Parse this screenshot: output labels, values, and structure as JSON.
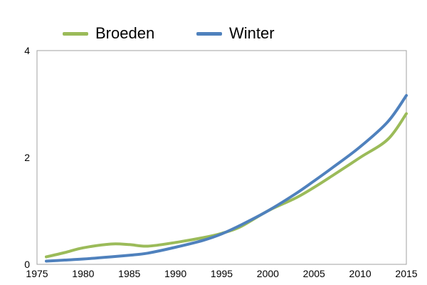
{
  "chart_data": {
    "type": "line",
    "title": "",
    "xlabel": "",
    "ylabel": "",
    "xlim": [
      1975,
      2015
    ],
    "ylim": [
      0,
      4
    ],
    "x_ticks": [
      1975,
      1980,
      1985,
      1990,
      1995,
      2000,
      2005,
      2010,
      2015
    ],
    "y_ticks": [
      0,
      2,
      4
    ],
    "grid": false,
    "legend_position": "top",
    "x": [
      1976,
      1978,
      1980,
      1983,
      1985,
      1987,
      1990,
      1993,
      1995,
      1997,
      2000,
      2003,
      2005,
      2007,
      2010,
      2013,
      2015
    ],
    "series": [
      {
        "name": "Broeden",
        "color": "#9bbb59",
        "values": [
          0.14,
          0.22,
          0.31,
          0.38,
          0.37,
          0.34,
          0.41,
          0.5,
          0.58,
          0.7,
          1.0,
          1.24,
          1.44,
          1.66,
          2.0,
          2.34,
          2.82
        ]
      },
      {
        "name": "Winter",
        "color": "#4f81bd",
        "values": [
          0.06,
          0.08,
          0.1,
          0.14,
          0.17,
          0.21,
          0.32,
          0.45,
          0.57,
          0.73,
          1.0,
          1.32,
          1.56,
          1.81,
          2.2,
          2.67,
          3.16
        ]
      }
    ]
  }
}
